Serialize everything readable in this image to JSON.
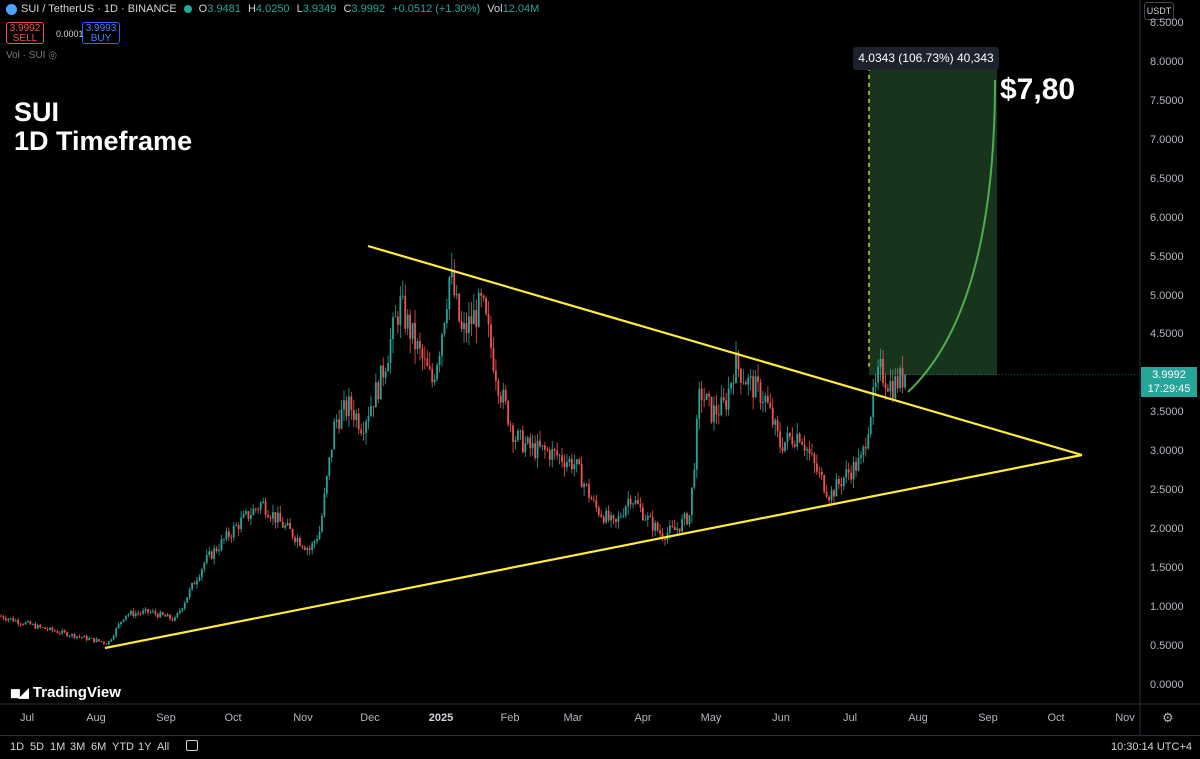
{
  "header": {
    "symbol": "SUI / TetherUS · 1D · BINANCE",
    "open_label": "O",
    "open": "3.9481",
    "high_label": "H",
    "high": "4.0250",
    "low_label": "L",
    "low": "3.9349",
    "close_label": "C",
    "close": "3.9992",
    "change": "+0.0512 (+1.30%)",
    "vol_label": "Vol",
    "vol": "12.04M"
  },
  "trade": {
    "sell_price": "3.9992",
    "sell_label": "SELL",
    "spread": "0.0001",
    "buy_price": "3.9993",
    "buy_label": "BUY"
  },
  "volume_indicator": "Vol · SUI",
  "currency": "USDT",
  "overlay": {
    "title_line1": "SUI",
    "title_line2": "1D Timeframe",
    "target": "$7,80",
    "measure": "4.0343 (106.73%) 40,343"
  },
  "price_axis": [
    "8.5000",
    "8.0000",
    "7.5000",
    "7.0000",
    "6.5000",
    "6.0000",
    "5.5000",
    "5.0000",
    "4.5000",
    "4.0000",
    "3.5000",
    "3.0000",
    "2.5000",
    "2.0000",
    "1.5000",
    "1.0000",
    "0.5000",
    "0.0000"
  ],
  "price_tag": {
    "price": "3.9992",
    "countdown": "17:29:45"
  },
  "time_axis": [
    "Jul",
    "Aug",
    "Sep",
    "Oct",
    "Nov",
    "Dec",
    "2025",
    "Feb",
    "Mar",
    "Apr",
    "May",
    "Jun",
    "Jul",
    "Aug",
    "Sep",
    "Oct",
    "Nov"
  ],
  "watermark": "TradingView",
  "bottom_bar": {
    "timeframes": [
      "1D",
      "5D",
      "1M",
      "3M",
      "6M",
      "YTD",
      "1Y",
      "All"
    ],
    "clock": "10:30:14 UTC+4"
  },
  "colors": {
    "up": "#26a69a",
    "down": "#ef5350",
    "trendline": "#ffeb3b",
    "target_zone": "#1b3a1f",
    "projection": "#4caf50"
  },
  "chart_data": {
    "type": "candlestick",
    "title": "SUI / TetherUS · 1D · BINANCE",
    "ylim": [
      0,
      8.5
    ],
    "x": [
      "Jul",
      "Aug",
      "Sep",
      "Oct",
      "Nov",
      "Dec",
      "2025",
      "Feb",
      "Mar",
      "Apr",
      "May",
      "Jun",
      "Jul",
      "Aug"
    ],
    "close": [
      0.9,
      0.55,
      0.9,
      2.2,
      1.9,
      3.9,
      4.8,
      4.1,
      2.7,
      2.2,
      4.1,
      3.2,
      2.9,
      4.0
    ],
    "last_price": 3.9992,
    "target": 7.8,
    "grid": false
  }
}
